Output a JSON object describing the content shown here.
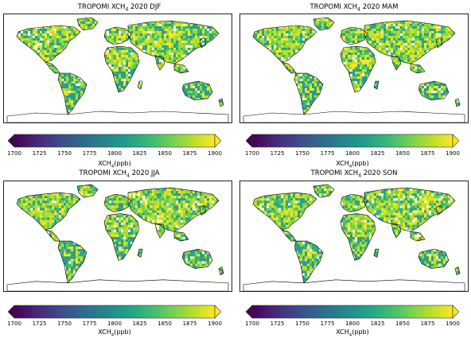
{
  "panels": [
    {
      "title_pre": "TROPOMI XCH",
      "title_sub": "4",
      "title_post": " 2020 DJF"
    },
    {
      "title_pre": "TROPOMI XCH",
      "title_sub": "4",
      "title_post": " 2020 MAM"
    },
    {
      "title_pre": "TROPOMI XCH",
      "title_sub": "4",
      "title_post": " 2020 JJA"
    },
    {
      "title_pre": "TROPOMI XCH",
      "title_sub": "4",
      "title_post": " 2020 SON"
    }
  ],
  "colorbar": {
    "ticks": [
      "1700",
      "1725",
      "1750",
      "1775",
      "1800",
      "1825",
      "1850",
      "1875",
      "1900"
    ],
    "label_pre": "XCH",
    "label_sub": "4",
    "label_post": "(ppb)",
    "colormap": [
      "#440154",
      "#482878",
      "#3e4989",
      "#31688e",
      "#26828e",
      "#1f9e89",
      "#35b779",
      "#6ece58",
      "#b5de2b",
      "#fde725"
    ],
    "range": [
      1700,
      1900
    ],
    "extend": "both"
  },
  "land_colors": [
    "#35b779",
    "#6ece58",
    "#8fd744",
    "#b5de2b",
    "#d8e219",
    "#fde725",
    "#2a9d8f"
  ]
}
